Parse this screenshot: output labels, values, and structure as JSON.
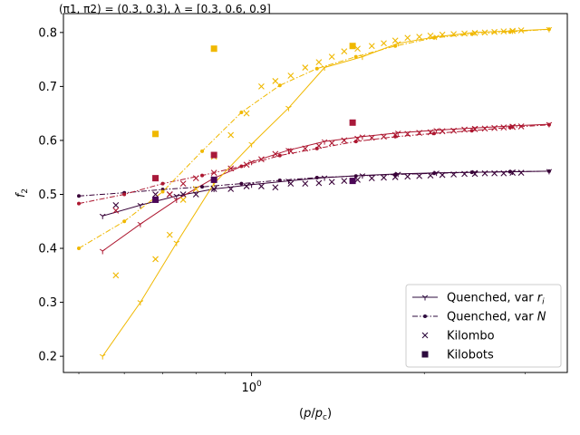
{
  "figure": {
    "title": "(π1, π2) = (0.3, 0.3), λ = [0.3, 0.6, 0.9]"
  },
  "chart_data": {
    "type": "line",
    "title": "(π1, π2) = (0.3, 0.3), λ = [0.3, 0.6, 0.9]",
    "xlabel": "(p/pc)",
    "ylabel": "f2",
    "x_scale": "log",
    "xlim": [
      0.47,
      3.55
    ],
    "ylim": [
      0.17,
      0.835
    ],
    "x_ticks": [
      {
        "value": 1,
        "label": "10^0"
      }
    ],
    "y_ticks": [
      {
        "value": 0.2,
        "label": "0.2"
      },
      {
        "value": 0.3,
        "label": "0.3"
      },
      {
        "value": 0.4,
        "label": "0.4"
      },
      {
        "value": 0.5,
        "label": "0.5"
      },
      {
        "value": 0.6,
        "label": "0.6"
      },
      {
        "value": 0.7,
        "label": "0.7"
      },
      {
        "value": 0.8,
        "label": "0.8"
      }
    ],
    "grid": false,
    "legend": {
      "position": "lower-right",
      "entries": [
        {
          "label": "Quenched, var r_i",
          "label_main": "Quenched, var ",
          "label_math": "r",
          "label_sub": "i",
          "style": "solid-tri"
        },
        {
          "label": "Quenched, var N",
          "label_main": "Quenched, var ",
          "label_math": "N",
          "label_sub": "",
          "style": "dashdot-dot"
        },
        {
          "label": "Kilombo",
          "label_main": "Kilombo",
          "label_math": "",
          "label_sub": "",
          "style": "x"
        },
        {
          "label": "Kilobots",
          "label_main": "Kilobots",
          "label_math": "",
          "label_sub": "",
          "style": "square"
        }
      ],
      "colors": {
        "series_marker": "#2d0b3e"
      }
    },
    "series": [
      {
        "group": "Quenched, var r_i",
        "lambda": 0.3,
        "color": "#380238",
        "style": "solid-tri",
        "x": [
          0.55,
          0.64,
          0.74,
          0.86,
          1.0,
          1.16,
          1.34,
          1.56,
          1.8,
          2.1,
          2.45,
          2.85,
          3.3
        ],
        "y": [
          0.46,
          0.48,
          0.497,
          0.51,
          0.518,
          0.525,
          0.531,
          0.535,
          0.538,
          0.54,
          0.541,
          0.542,
          0.543
        ]
      },
      {
        "group": "Quenched, var r_i",
        "lambda": 0.6,
        "color": "#ad1730",
        "style": "solid-tri",
        "x": [
          0.55,
          0.64,
          0.74,
          0.86,
          1.0,
          1.16,
          1.34,
          1.56,
          1.8,
          2.1,
          2.45,
          2.85,
          3.3
        ],
        "y": [
          0.395,
          0.445,
          0.49,
          0.53,
          0.56,
          0.582,
          0.598,
          0.607,
          0.614,
          0.619,
          0.623,
          0.627,
          0.63
        ]
      },
      {
        "group": "Quenched, var r_i",
        "lambda": 0.9,
        "color": "#f0b800",
        "style": "solid-tri",
        "x": [
          0.55,
          0.64,
          0.74,
          0.86,
          1.0,
          1.16,
          1.34,
          1.56,
          1.8,
          2.1,
          2.45,
          2.85,
          3.3
        ],
        "y": [
          0.2,
          0.3,
          0.41,
          0.52,
          0.593,
          0.66,
          0.735,
          0.755,
          0.78,
          0.792,
          0.8,
          0.803,
          0.806
        ]
      },
      {
        "group": "Quenched, var N",
        "lambda": 0.3,
        "color": "#380238",
        "style": "dashdot-dot",
        "x": [
          0.5,
          0.6,
          0.7,
          0.82,
          0.96,
          1.12,
          1.3,
          1.52,
          1.78,
          2.08,
          2.42,
          2.82,
          3.3
        ],
        "y": [
          0.497,
          0.503,
          0.509,
          0.514,
          0.52,
          0.526,
          0.531,
          0.534,
          0.537,
          0.539,
          0.541,
          0.542,
          0.543
        ]
      },
      {
        "group": "Quenched, var N",
        "lambda": 0.6,
        "color": "#ad1730",
        "style": "dashdot-dot",
        "x": [
          0.5,
          0.6,
          0.7,
          0.82,
          0.96,
          1.12,
          1.3,
          1.52,
          1.78,
          2.08,
          2.42,
          2.82,
          3.3
        ],
        "y": [
          0.483,
          0.5,
          0.52,
          0.535,
          0.552,
          0.572,
          0.585,
          0.598,
          0.607,
          0.613,
          0.618,
          0.624,
          0.629
        ]
      },
      {
        "group": "Quenched, var N",
        "lambda": 0.9,
        "color": "#f0b800",
        "style": "dashdot-dot",
        "x": [
          0.5,
          0.6,
          0.7,
          0.82,
          0.96,
          1.12,
          1.3,
          1.52,
          1.78,
          2.08,
          2.42,
          2.82,
          3.3
        ],
        "y": [
          0.4,
          0.45,
          0.505,
          0.58,
          0.652,
          0.702,
          0.733,
          0.755,
          0.775,
          0.79,
          0.797,
          0.801,
          0.806
        ]
      },
      {
        "group": "Kilombo",
        "lambda": 0.3,
        "color": "#380238",
        "style": "x",
        "x": [
          0.58,
          0.68,
          0.72,
          0.76,
          0.8,
          0.86,
          0.92,
          0.98,
          1.04,
          1.1,
          1.17,
          1.24,
          1.31,
          1.38,
          1.45,
          1.53,
          1.62,
          1.7,
          1.78,
          1.87,
          1.96,
          2.05,
          2.15,
          2.25,
          2.35,
          2.45,
          2.55,
          2.65,
          2.75,
          2.85,
          2.95
        ],
        "y": [
          0.48,
          0.5,
          0.5,
          0.5,
          0.5,
          0.51,
          0.51,
          0.515,
          0.515,
          0.513,
          0.52,
          0.52,
          0.521,
          0.523,
          0.525,
          0.527,
          0.53,
          0.531,
          0.532,
          0.533,
          0.534,
          0.535,
          0.536,
          0.537,
          0.538,
          0.538,
          0.539,
          0.539,
          0.539,
          0.54,
          0.54
        ]
      },
      {
        "group": "Kilombo",
        "lambda": 0.6,
        "color": "#ad1730",
        "style": "x",
        "x": [
          0.58,
          0.68,
          0.72,
          0.76,
          0.8,
          0.86,
          0.92,
          0.98,
          1.04,
          1.1,
          1.17,
          1.24,
          1.31,
          1.38,
          1.45,
          1.53,
          1.62,
          1.7,
          1.78,
          1.87,
          1.96,
          2.05,
          2.15,
          2.25,
          2.35,
          2.45,
          2.55,
          2.65,
          2.75,
          2.85,
          2.95
        ],
        "y": [
          0.47,
          0.49,
          0.5,
          0.52,
          0.53,
          0.54,
          0.548,
          0.555,
          0.565,
          0.575,
          0.58,
          0.585,
          0.59,
          0.595,
          0.6,
          0.603,
          0.605,
          0.607,
          0.61,
          0.612,
          0.614,
          0.615,
          0.617,
          0.618,
          0.62,
          0.621,
          0.622,
          0.623,
          0.624,
          0.625,
          0.626
        ]
      },
      {
        "group": "Kilombo",
        "lambda": 0.9,
        "color": "#f0b800",
        "style": "x",
        "x": [
          0.58,
          0.68,
          0.72,
          0.76,
          0.8,
          0.86,
          0.92,
          0.98,
          1.04,
          1.1,
          1.17,
          1.24,
          1.31,
          1.38,
          1.45,
          1.53,
          1.62,
          1.7,
          1.78,
          1.87,
          1.96,
          2.05,
          2.15,
          2.25,
          2.35,
          2.45,
          2.55,
          2.65,
          2.75,
          2.85,
          2.95
        ],
        "y": [
          0.35,
          0.38,
          0.425,
          0.49,
          0.51,
          0.57,
          0.61,
          0.65,
          0.7,
          0.71,
          0.72,
          0.735,
          0.745,
          0.755,
          0.765,
          0.77,
          0.775,
          0.78,
          0.785,
          0.79,
          0.792,
          0.794,
          0.796,
          0.797,
          0.798,
          0.799,
          0.8,
          0.801,
          0.802,
          0.803,
          0.804
        ]
      },
      {
        "group": "Kilobots",
        "lambda": 0.3,
        "color": "#4b0656",
        "style": "square",
        "x": [
          0.68,
          0.86,
          1.5
        ],
        "y": [
          0.49,
          0.527,
          0.525
        ]
      },
      {
        "group": "Kilobots",
        "lambda": 0.6,
        "color": "#a8193a",
        "style": "square",
        "x": [
          0.68,
          0.86,
          1.5
        ],
        "y": [
          0.53,
          0.573,
          0.633
        ]
      },
      {
        "group": "Kilobots",
        "lambda": 0.9,
        "color": "#f0b800",
        "style": "square",
        "x": [
          0.68,
          0.86,
          1.5
        ],
        "y": [
          0.612,
          0.77,
          0.775
        ]
      }
    ]
  }
}
